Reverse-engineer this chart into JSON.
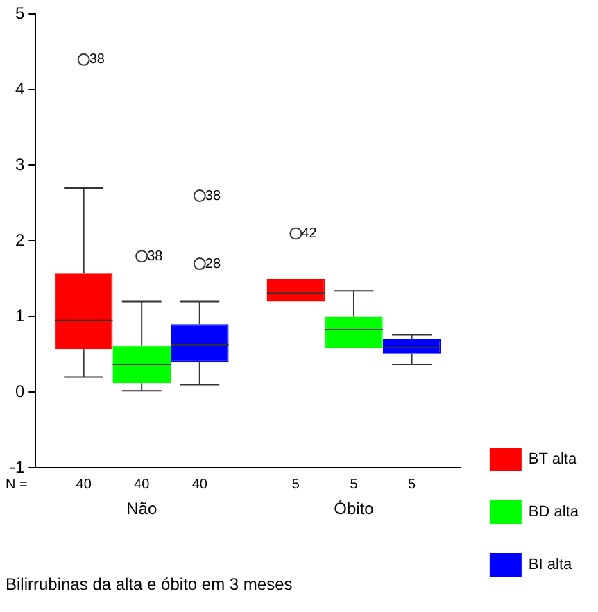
{
  "chart_data": {
    "type": "box",
    "title": "Bilirrubinas da alta e óbito em 3 meses",
    "categories": [
      "Não",
      "Óbito"
    ],
    "series": [
      {
        "name": "BT alta",
        "color": "#ff0000",
        "value_labels": [
          "40",
          "5"
        ],
        "boxes": [
          {
            "low": 0.2,
            "q1": 0.57,
            "median": 0.95,
            "q3": 1.57,
            "high": 2.7,
            "outliers": [
              4.4
            ]
          },
          {
            "low": 1.2,
            "q1": 1.2,
            "median": 1.31,
            "q3": 1.5,
            "high": 1.5,
            "outliers": [
              2.1
            ]
          }
        ]
      },
      {
        "name": "BD alta",
        "color": "#00ff00",
        "value_labels": [
          "40",
          "5"
        ],
        "boxes": [
          {
            "low": 0.02,
            "q1": 0.12,
            "median": 0.37,
            "q3": 0.62,
            "high": 1.2,
            "outliers": [
              1.8
            ]
          },
          {
            "low": 0.59,
            "q1": 0.59,
            "median": 0.83,
            "q3": 1.0,
            "high": 1.34
          }
        ]
      },
      {
        "name": "BI alta",
        "color": "#0000ff",
        "value_labels": [
          "40",
          "5"
        ],
        "boxes": [
          {
            "low": 0.1,
            "q1": 0.4,
            "median": 0.63,
            "q3": 0.9,
            "high": 1.2,
            "outliers": [
              1.7,
              2.6
            ]
          },
          {
            "low": 0.37,
            "q1": 0.51,
            "median": 0.59,
            "q3": 0.7,
            "high": 0.76
          }
        ]
      }
    ],
    "ylim": [
      -1,
      5
    ],
    "yticks": [
      -1,
      0,
      1,
      2,
      3,
      4,
      5
    ],
    "grid": false,
    "legend": "right",
    "annotations": [
      "N =",
      "38",
      "42",
      "38",
      "28",
      "38"
    ]
  }
}
